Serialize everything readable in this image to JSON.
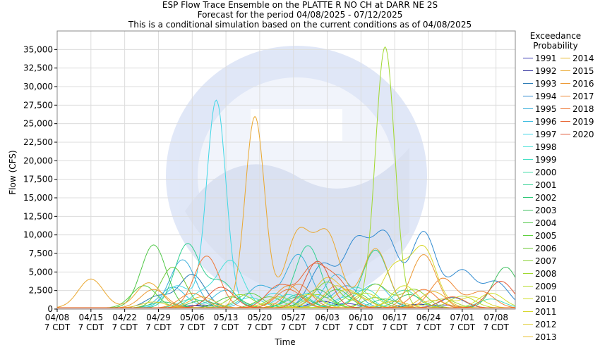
{
  "chart_data": {
    "type": "line",
    "title_lines": [
      "ESP Flow Trace Ensemble on the PLATTE R NO CH at DARR NE 2S",
      "Forecast for the period 04/08/2025 - 07/12/2025",
      "This is a conditional simulation based on the current conditions as of 04/08/2025"
    ],
    "xlabel": "Time",
    "ylabel": "Flow (CFS)",
    "ylim": [
      0,
      37500
    ],
    "y_ticks": [
      0,
      2500,
      5000,
      7500,
      10000,
      12500,
      15000,
      17500,
      20000,
      22500,
      25000,
      27500,
      30000,
      32500,
      35000
    ],
    "y_tick_labels": [
      "0",
      "2,500",
      "5,000",
      "7,500",
      "10,000",
      "12,500",
      "15,000",
      "17,500",
      "20,000",
      "22,500",
      "25,000",
      "27,500",
      "30,000",
      "32,500",
      "35,000"
    ],
    "x_domain_days": [
      0,
      95
    ],
    "x_ticks": [
      {
        "day": 0,
        "date": "04/08",
        "sub": "7 CDT"
      },
      {
        "day": 7,
        "date": "04/15",
        "sub": "7 CDT"
      },
      {
        "day": 14,
        "date": "04/22",
        "sub": "7 CDT"
      },
      {
        "day": 21,
        "date": "04/29",
        "sub": "7 CDT"
      },
      {
        "day": 28,
        "date": "05/06",
        "sub": "7 CDT"
      },
      {
        "day": 35,
        "date": "05/13",
        "sub": "7 CDT"
      },
      {
        "day": 42,
        "date": "05/20",
        "sub": "7 CDT"
      },
      {
        "day": 49,
        "date": "05/27",
        "sub": "7 CDT"
      },
      {
        "day": 56,
        "date": "06/03",
        "sub": "7 CDT"
      },
      {
        "day": 63,
        "date": "06/10",
        "sub": "7 CDT"
      },
      {
        "day": 70,
        "date": "06/17",
        "sub": "7 CDT"
      },
      {
        "day": 77,
        "date": "06/24",
        "sub": "7 CDT"
      },
      {
        "day": 84,
        "date": "07/01",
        "sub": "7 CDT"
      },
      {
        "day": 91,
        "date": "07/08",
        "sub": "7 CDT"
      }
    ],
    "grid": true,
    "legend": {
      "title_line1": "Exceedance",
      "title_line2": "Probability",
      "placement": "right"
    },
    "series": [
      {
        "name": "1991",
        "color": "#3c3cb4",
        "peaks": [
          [
            28,
            300
          ],
          [
            60,
            600
          ],
          [
            80,
            400
          ]
        ]
      },
      {
        "name": "1992",
        "color": "#2a2a9a",
        "peaks": [
          [
            30,
            400
          ],
          [
            55,
            900
          ],
          [
            75,
            500
          ]
        ]
      },
      {
        "name": "1993",
        "color": "#2a7ab4",
        "peaks": [
          [
            21,
            1600
          ],
          [
            28,
            4500
          ],
          [
            50,
            1800
          ],
          [
            82,
            1400
          ]
        ]
      },
      {
        "name": "1994",
        "color": "#2f8ad0",
        "peaks": [
          [
            55,
            5800
          ],
          [
            62,
            8800
          ],
          [
            68,
            9700
          ],
          [
            76,
            10200
          ],
          [
            84,
            5000
          ],
          [
            91,
            3500
          ]
        ]
      },
      {
        "name": "1995",
        "color": "#3aaedb",
        "peaks": [
          [
            26,
            6500
          ],
          [
            42,
            3000
          ],
          [
            50,
            7200
          ],
          [
            60,
            3000
          ]
        ]
      },
      {
        "name": "1996",
        "color": "#40bde0",
        "peaks": [
          [
            24,
            2800
          ],
          [
            35,
            2400
          ],
          [
            58,
            4500
          ],
          [
            66,
            3200
          ]
        ]
      },
      {
        "name": "1997",
        "color": "#40d7e6",
        "peaks": [
          [
            25,
            3000
          ],
          [
            33,
            28000
          ],
          [
            45,
            2000
          ],
          [
            60,
            1500
          ]
        ]
      },
      {
        "name": "1998",
        "color": "#48e0d8",
        "peaks": [
          [
            30,
            2000
          ],
          [
            36,
            6300
          ],
          [
            48,
            1800
          ],
          [
            62,
            2800
          ]
        ]
      },
      {
        "name": "1999",
        "color": "#44e0c4",
        "peaks": [
          [
            40,
            1400
          ],
          [
            52,
            2000
          ],
          [
            64,
            2500
          ],
          [
            90,
            1200
          ]
        ]
      },
      {
        "name": "2000",
        "color": "#40dca8",
        "peaks": [
          [
            28,
            1200
          ],
          [
            50,
            1800
          ],
          [
            72,
            2400
          ]
        ]
      },
      {
        "name": "2001",
        "color": "#30d090",
        "peaks": [
          [
            27,
            8600
          ],
          [
            34,
            3500
          ],
          [
            52,
            8400
          ],
          [
            66,
            7800
          ]
        ]
      },
      {
        "name": "2002",
        "color": "#30c878",
        "peaks": [
          [
            22,
            800
          ],
          [
            50,
            1500
          ],
          [
            68,
            1200
          ]
        ]
      },
      {
        "name": "2003",
        "color": "#40c060",
        "peaks": [
          [
            30,
            1000
          ],
          [
            54,
            2500
          ],
          [
            73,
            1800
          ],
          [
            93,
            5500
          ]
        ]
      },
      {
        "name": "2004",
        "color": "#50c848",
        "peaks": [
          [
            20,
            8500
          ],
          [
            36,
            1500
          ],
          [
            58,
            2500
          ]
        ]
      },
      {
        "name": "2005",
        "color": "#60d040",
        "peaks": [
          [
            18,
            3000
          ],
          [
            40,
            2000
          ],
          [
            62,
            2000
          ]
        ]
      },
      {
        "name": "2006",
        "color": "#70c838",
        "peaks": [
          [
            24,
            5500
          ],
          [
            44,
            1500
          ],
          [
            66,
            1400
          ]
        ]
      },
      {
        "name": "2007",
        "color": "#88d030",
        "peaks": [
          [
            56,
            3500
          ],
          [
            66,
            3200
          ],
          [
            74,
            2500
          ]
        ]
      },
      {
        "name": "2008",
        "color": "#a0d830",
        "peaks": [
          [
            38,
            1800
          ],
          [
            54,
            1800
          ],
          [
            68,
            35200
          ],
          [
            80,
            1200
          ]
        ]
      },
      {
        "name": "2009",
        "color": "#b8dc30",
        "peaks": [
          [
            46,
            1500
          ],
          [
            64,
            2000
          ],
          [
            84,
            1600
          ]
        ]
      },
      {
        "name": "2010",
        "color": "#d0e030",
        "peaks": [
          [
            52,
            1800
          ],
          [
            72,
            3000
          ],
          [
            90,
            2000
          ]
        ]
      },
      {
        "name": "2011",
        "color": "#d8d830",
        "peaks": [
          [
            60,
            2500
          ],
          [
            70,
            5500
          ],
          [
            76,
            8000
          ],
          [
            86,
            1500
          ]
        ]
      },
      {
        "name": "2012",
        "color": "#e0cc30",
        "peaks": [
          [
            20,
            800
          ],
          [
            44,
            600
          ],
          [
            70,
            900
          ]
        ]
      },
      {
        "name": "2013",
        "color": "#e8c030",
        "peaks": [
          [
            56,
            4000
          ],
          [
            62,
            1600
          ],
          [
            78,
            1000
          ]
        ]
      },
      {
        "name": "2014",
        "color": "#e8b830",
        "peaks": [
          [
            30,
            1500
          ],
          [
            58,
            3000
          ],
          [
            78,
            2200
          ]
        ]
      },
      {
        "name": "2015",
        "color": "#eaa830",
        "peaks": [
          [
            7,
            3900
          ],
          [
            19,
            3400
          ],
          [
            41,
            25800
          ],
          [
            50,
            10000
          ],
          [
            56,
            9800
          ],
          [
            66,
            8000
          ]
        ]
      },
      {
        "name": "2016",
        "color": "#ec9832",
        "peaks": [
          [
            20,
            2500
          ],
          [
            48,
            3000
          ],
          [
            76,
            7200
          ]
        ]
      },
      {
        "name": "2017",
        "color": "#ee8834",
        "peaks": [
          [
            28,
            2000
          ],
          [
            50,
            3200
          ],
          [
            80,
            4000
          ],
          [
            88,
            2200
          ]
        ]
      },
      {
        "name": "2018",
        "color": "#ee7836",
        "peaks": [
          [
            31,
            7000
          ],
          [
            48,
            2500
          ],
          [
            76,
            2500
          ]
        ]
      },
      {
        "name": "2019",
        "color": "#e86838",
        "peaks": [
          [
            46,
            3000
          ],
          [
            53,
            5300
          ],
          [
            58,
            3500
          ],
          [
            82,
            1500
          ]
        ]
      },
      {
        "name": "2020",
        "color": "#e05838",
        "peaks": [
          [
            34,
            2800
          ],
          [
            54,
            6300
          ],
          [
            92,
            3600
          ]
        ]
      }
    ]
  }
}
